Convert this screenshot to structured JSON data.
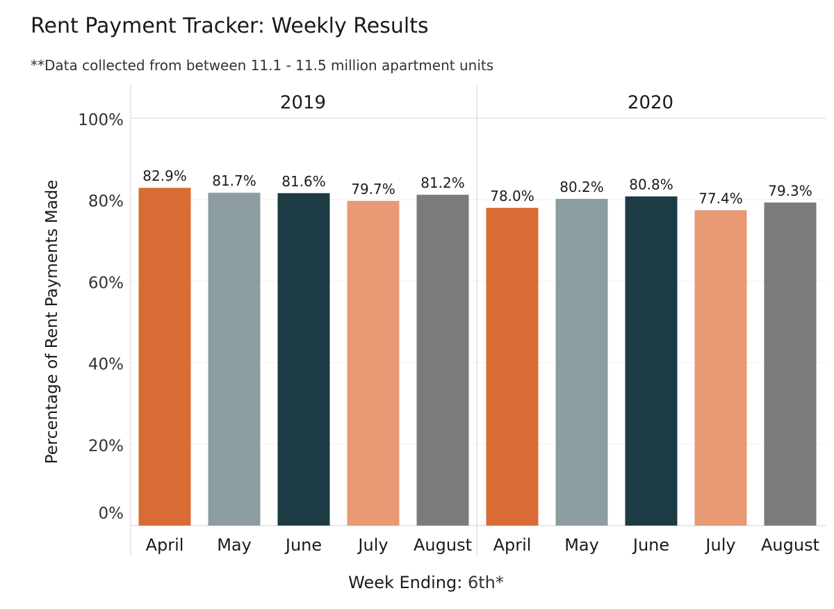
{
  "title": "Rent Payment Tracker: Weekly Results",
  "subtitle": "**Data collected from between 11.1 - 11.5 million apartment units",
  "footer": {
    "label": "Week Ending:",
    "value": "6th*"
  },
  "chart_data": {
    "type": "bar",
    "ylabel": "Percentage of Rent Payments Made",
    "ylim": [
      0,
      100
    ],
    "yticks": [
      "0%",
      "20%",
      "40%",
      "60%",
      "80%",
      "100%"
    ],
    "ytick_values": [
      0,
      20,
      40,
      60,
      80,
      100
    ],
    "grid": true,
    "legend": "none",
    "categories": [
      "April",
      "May",
      "June",
      "July",
      "August"
    ],
    "colors": [
      "#d96b35",
      "#8c9da0",
      "#1c3b44",
      "#e89a74",
      "#7b7b7b"
    ],
    "panels": [
      {
        "name": "2019",
        "values": [
          82.9,
          81.7,
          81.6,
          79.7,
          81.2
        ],
        "labels": [
          "82.9%",
          "81.7%",
          "81.6%",
          "79.7%",
          "81.2%"
        ]
      },
      {
        "name": "2020",
        "values": [
          78.0,
          80.2,
          80.8,
          77.4,
          79.3
        ],
        "labels": [
          "78.0%",
          "80.2%",
          "80.8%",
          "77.4%",
          "79.3%"
        ]
      }
    ]
  }
}
